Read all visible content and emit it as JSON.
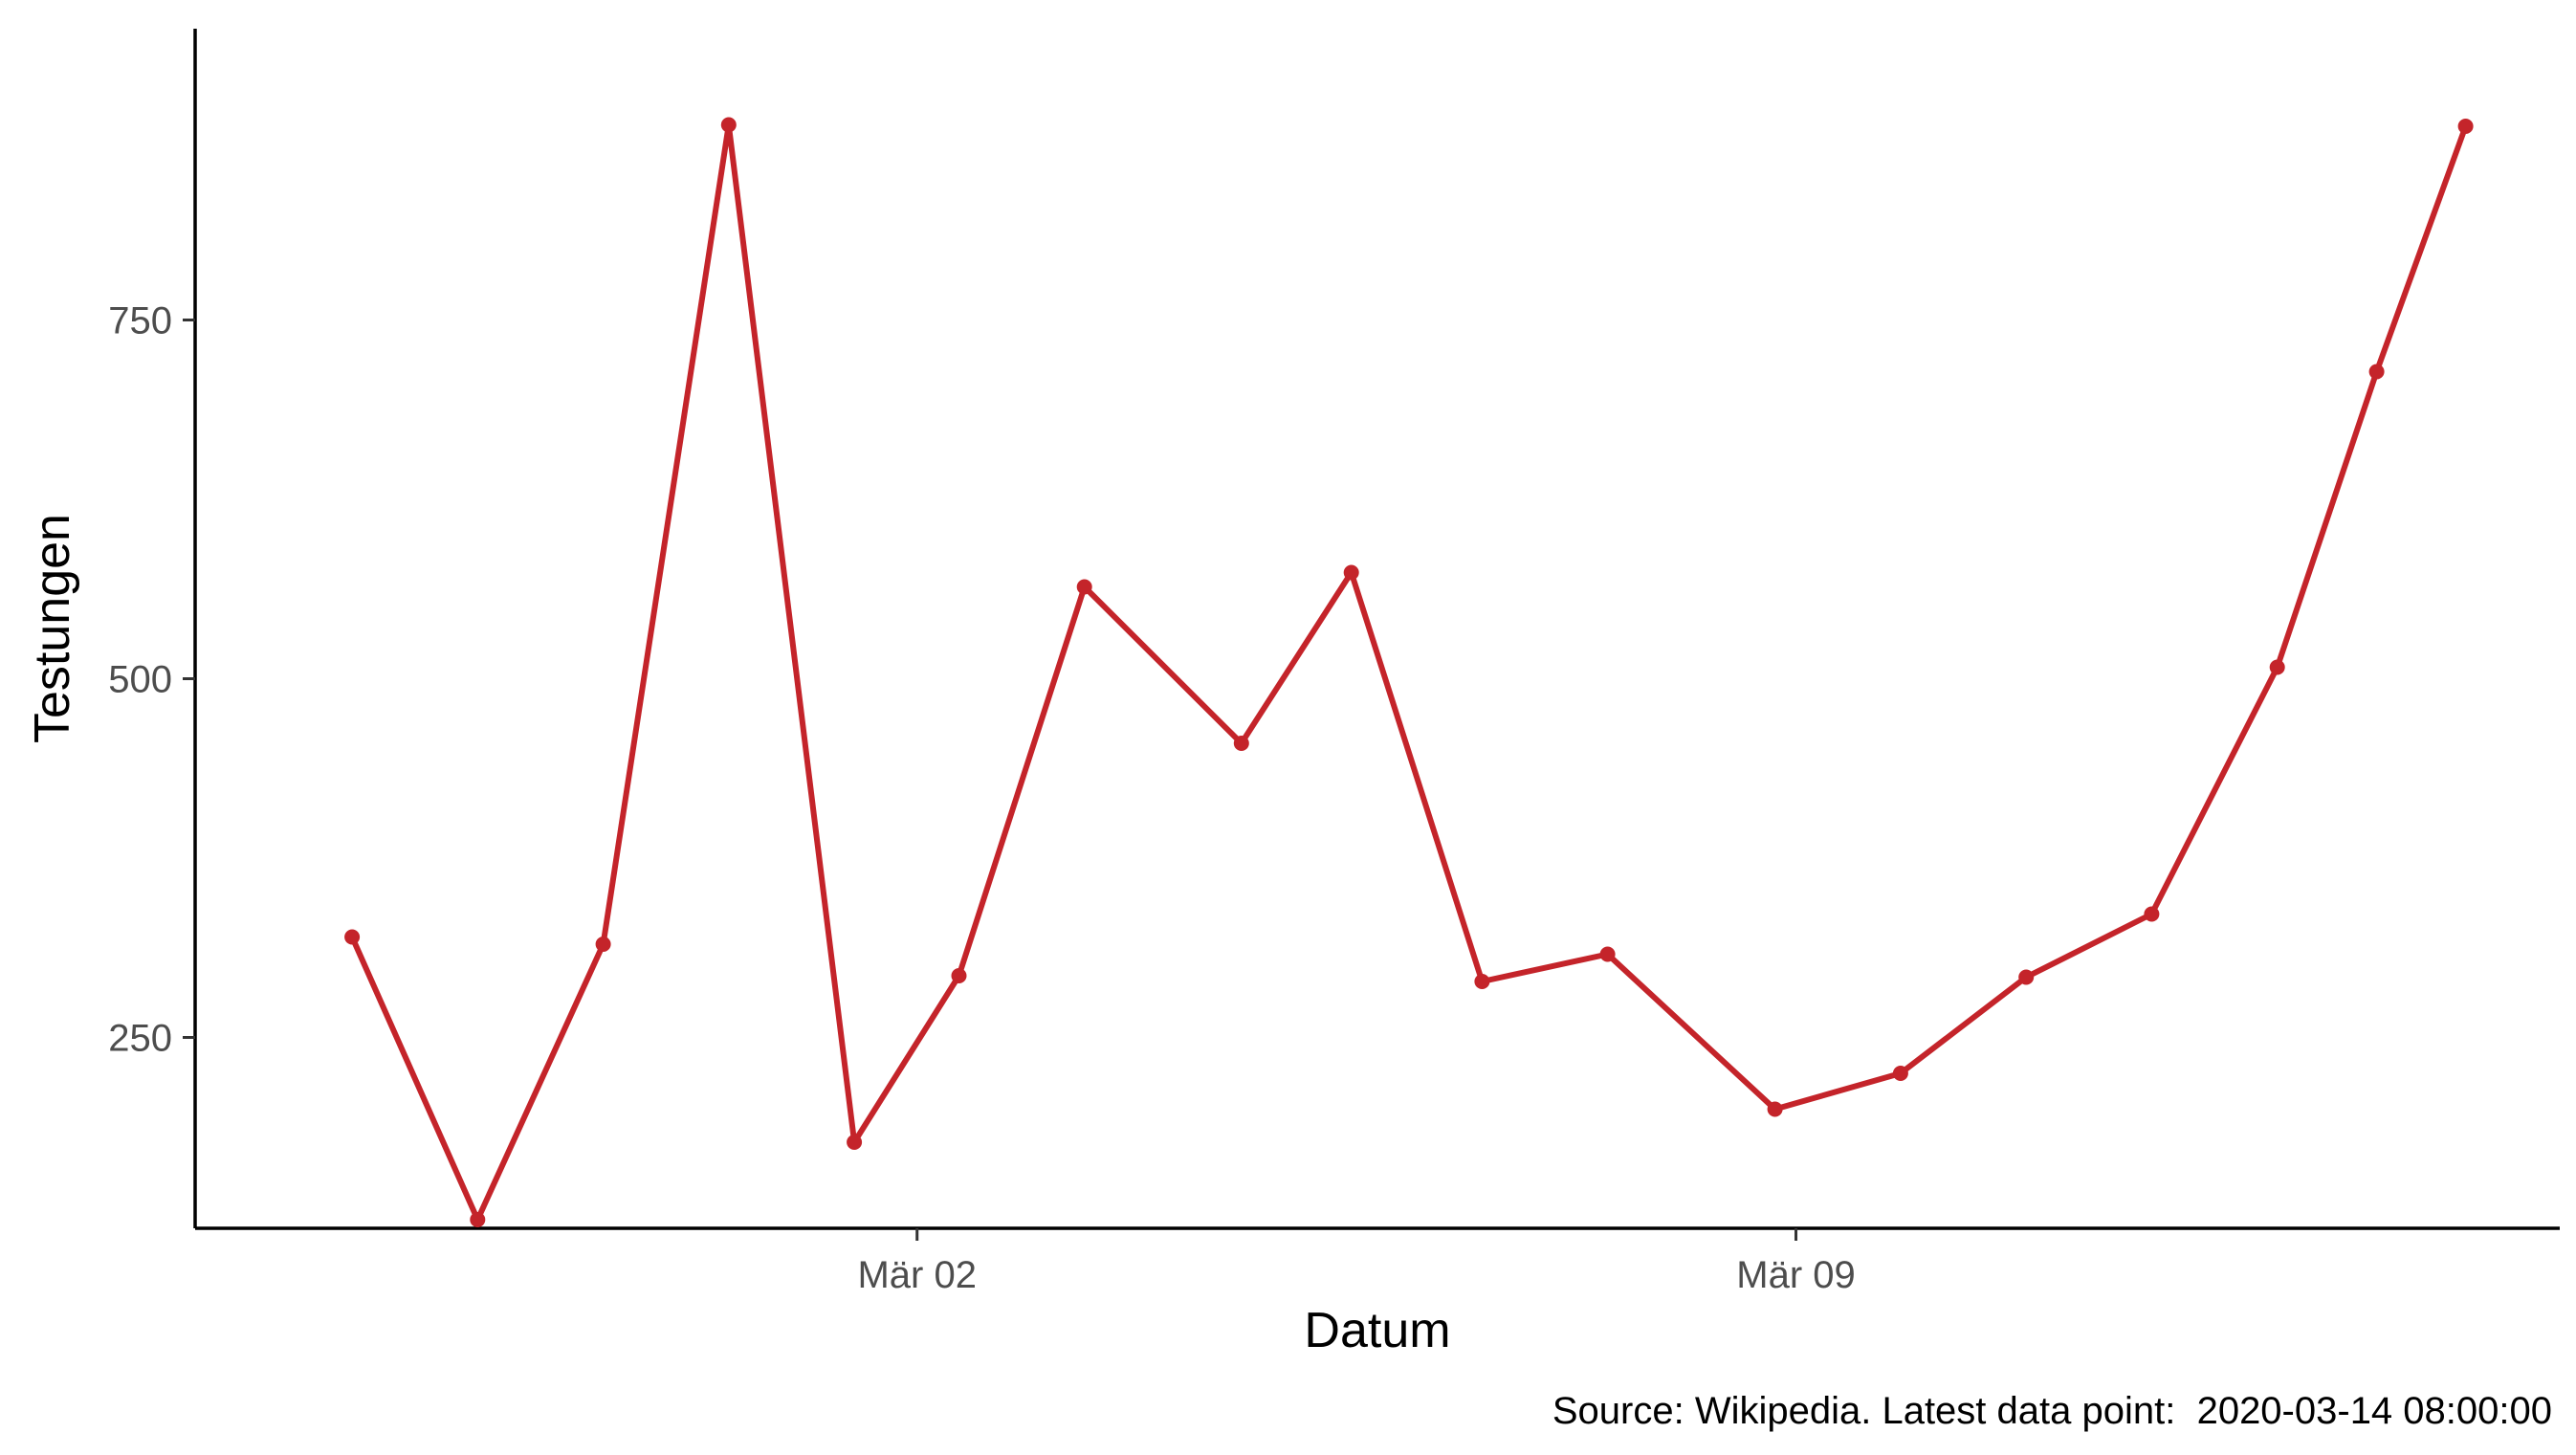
{
  "chart_data": {
    "type": "line",
    "xlabel": "Datum",
    "ylabel": "Testungen",
    "caption": "Source: Wikipedia. Latest data point:  2020-03-14 08:00:00",
    "grid": false,
    "legend": "none",
    "color": "#c4242a",
    "x_ticks": [
      {
        "value": "2020-03-02",
        "label": "Mär 02"
      },
      {
        "value": "2020-03-09",
        "label": "Mär 09"
      }
    ],
    "y_ticks": [
      250,
      500,
      750
    ],
    "xlim": [
      "2020-02-25 06:00",
      "2020-03-15 02:00"
    ],
    "ylim": [
      117,
      953
    ],
    "x": [
      "2020-02-26 12:00",
      "2020-02-27 12:00",
      "2020-02-28 12:00",
      "2020-02-29 12:00",
      "2020-03-01 12:00",
      "2020-03-02 08:00",
      "2020-03-03 08:00",
      "2020-03-04 14:00",
      "2020-03-05 11:00",
      "2020-03-06 12:00",
      "2020-03-07 12:00",
      "2020-03-08 20:00",
      "2020-03-09 20:00",
      "2020-03-10 20:00",
      "2020-03-11 20:00",
      "2020-03-12 20:00",
      "2020-03-13 15:00",
      "2020-03-14 08:00"
    ],
    "values": [
      320,
      123,
      315,
      886,
      177,
      293,
      564,
      455,
      574,
      289,
      308,
      200,
      225,
      292,
      336,
      508,
      714,
      885
    ]
  }
}
